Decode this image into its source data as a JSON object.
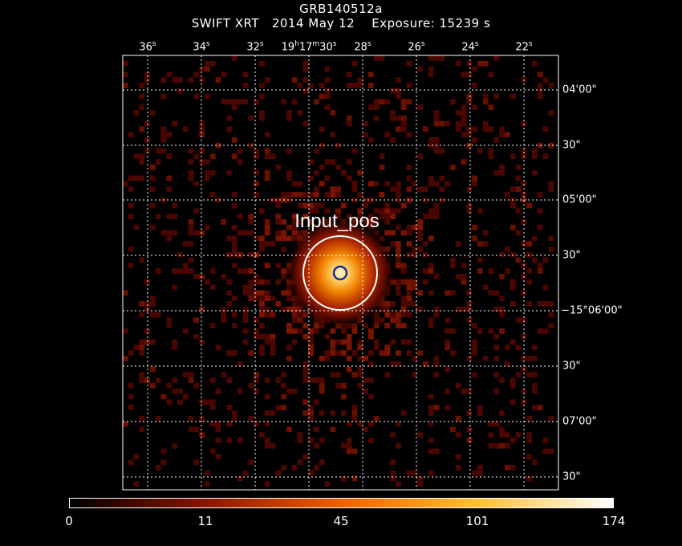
{
  "header": {
    "title": "GRB140512a",
    "subtitle": "SWIFT XRT   2014 May 12    Exposure: 15239 s"
  },
  "image": {
    "description_source": "Swift XRT X-ray counts image",
    "source_label": "Input_pos",
    "colors": {
      "low": "#3a0000",
      "mid": "#c83c00",
      "high": "#ffb000",
      "peak": "#fff4c0",
      "circle": "#ffffff",
      "marker": "#1a2aa8",
      "grid": "#ffffff"
    }
  },
  "ra_axis": {
    "ticks": [
      {
        "label": "36",
        "unit": "s"
      },
      {
        "label": "34",
        "unit": "s"
      },
      {
        "label": "32",
        "unit": "s"
      },
      {
        "label": "19h17m30s",
        "h": "19",
        "m": "17",
        "s": "30"
      },
      {
        "label": "28",
        "unit": "s"
      },
      {
        "label": "26",
        "unit": "s"
      },
      {
        "label": "24",
        "unit": "s"
      },
      {
        "label": "22",
        "unit": "s"
      }
    ]
  },
  "dec_axis": {
    "ticks": [
      "04'00\"",
      "30\"",
      "05'00\"",
      "30\"",
      "−15°06'00\"",
      "30\"",
      "07'00\"",
      "30\""
    ]
  },
  "colorbar": {
    "labels": [
      "0",
      "11",
      "45",
      "101",
      "174"
    ]
  }
}
